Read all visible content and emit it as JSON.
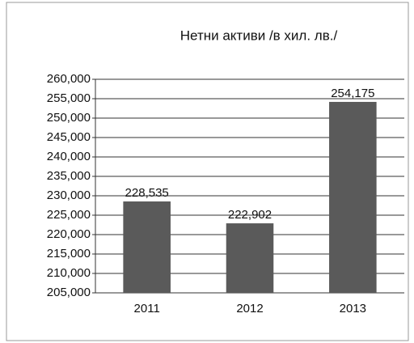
{
  "chart_data": {
    "type": "bar",
    "title": "Нетни активи /в хил. лв./",
    "categories": [
      "2011",
      "2012",
      "2013"
    ],
    "values": [
      228535,
      222902,
      254175
    ],
    "value_labels": [
      "228,535",
      "222,902",
      "254,175"
    ],
    "color": "#5a5a5a",
    "ylim": [
      205000,
      260000
    ],
    "yticks": [
      {
        "value": 205000,
        "label": "205,000"
      },
      {
        "value": 210000,
        "label": "210,000"
      },
      {
        "value": 215000,
        "label": "215,000"
      },
      {
        "value": 220000,
        "label": "220,000"
      },
      {
        "value": 225000,
        "label": "225,000"
      },
      {
        "value": 230000,
        "label": "230,000"
      },
      {
        "value": 235000,
        "label": "235,000"
      },
      {
        "value": 240000,
        "label": "240,000"
      },
      {
        "value": 245000,
        "label": "245,000"
      },
      {
        "value": 250000,
        "label": "250,000"
      },
      {
        "value": 255000,
        "label": "255,000"
      },
      {
        "value": 260000,
        "label": "260,000"
      }
    ],
    "grid": true
  }
}
